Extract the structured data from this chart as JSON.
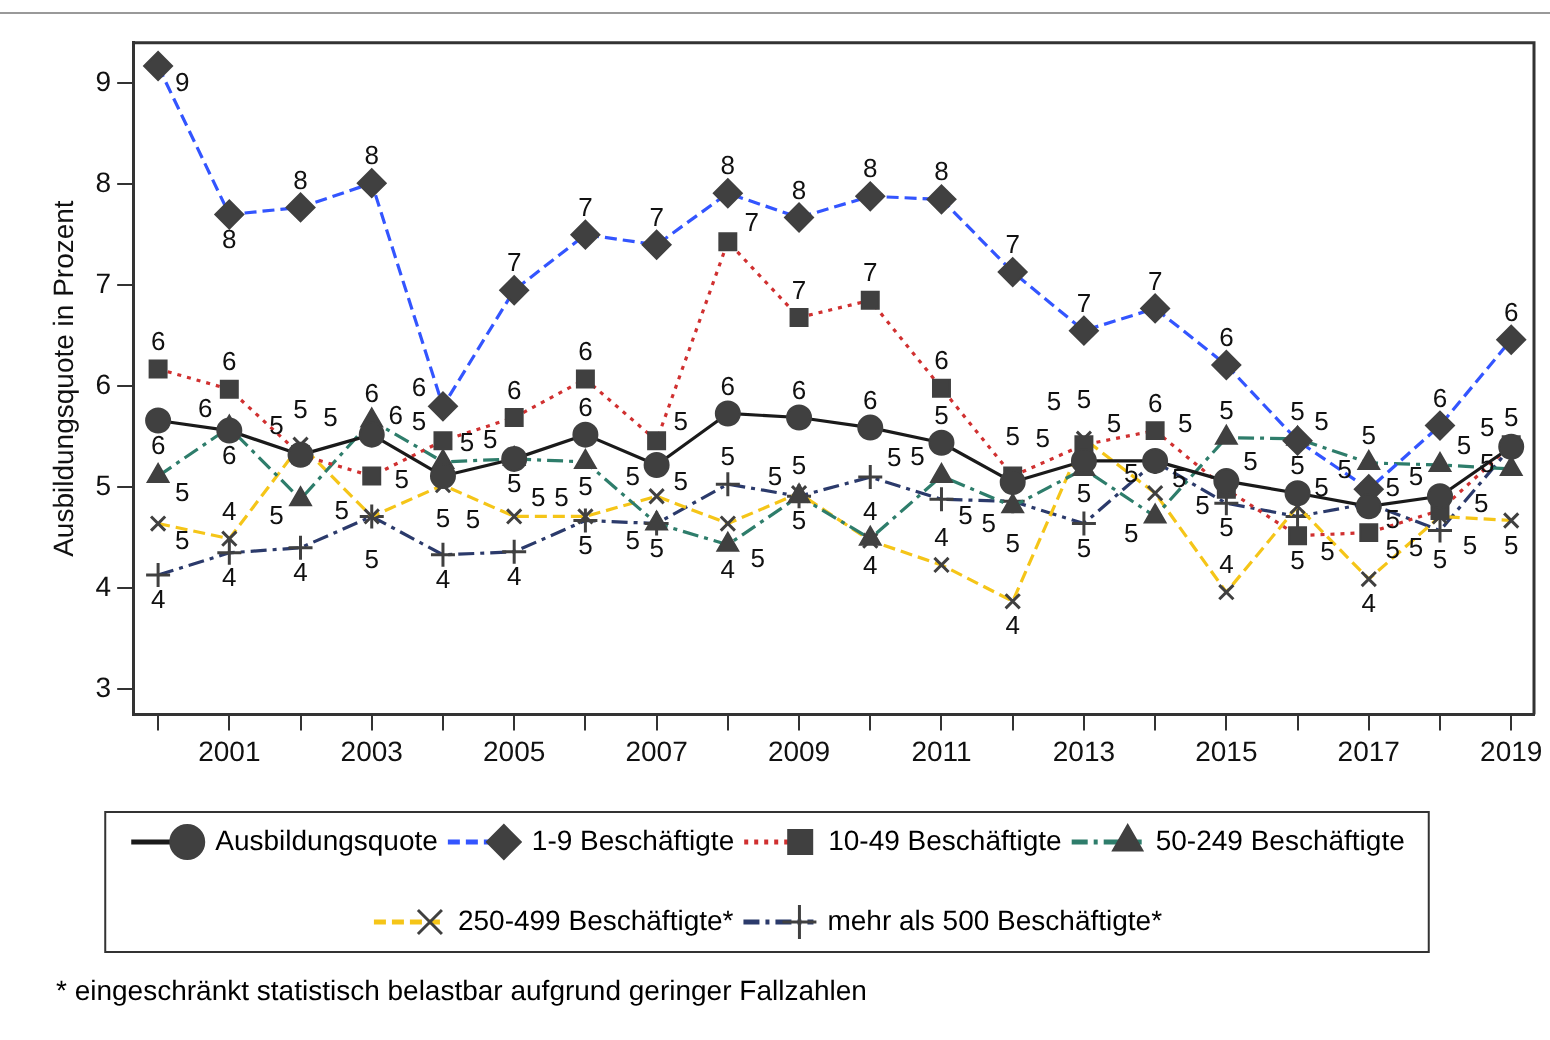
{
  "chart_data": {
    "type": "line",
    "ylabel": "Ausbildungsquote in Prozent",
    "x": [
      2000,
      2001,
      2002,
      2003,
      2004,
      2005,
      2006,
      2007,
      2008,
      2009,
      2010,
      2011,
      2012,
      2013,
      2014,
      2015,
      2016,
      2017,
      2018,
      2019
    ],
    "xlim": [
      1999.65,
      2019.32
    ],
    "xticks": [
      {
        "value": 2000,
        "label": null
      },
      2001,
      {
        "value": 2002,
        "label": null
      },
      2003,
      {
        "value": 2004,
        "label": null
      },
      2005,
      {
        "value": 2006,
        "label": null
      },
      2007,
      {
        "value": 2008,
        "label": null
      },
      2009,
      {
        "value": 2010,
        "label": null
      },
      2011,
      {
        "value": 2012,
        "label": null
      },
      2013,
      {
        "value": 2014,
        "label": null
      },
      2015,
      {
        "value": 2016,
        "label": null
      },
      2017,
      {
        "value": 2018,
        "label": null
      },
      2019
    ],
    "ylim": [
      2.75,
      9.4
    ],
    "yticks": [
      3,
      4,
      5,
      6,
      7,
      8,
      9
    ],
    "grid": false,
    "legend": "bottom",
    "series": [
      {
        "name": "Ausbildungsquote",
        "color": "#1a1a1a",
        "marker": "circle",
        "line_style": "solid",
        "values": [
          5.66,
          5.56,
          5.32,
          5.52,
          5.11,
          5.28,
          5.52,
          5.22,
          5.73,
          5.69,
          5.59,
          5.44,
          5.05,
          5.26,
          5.26,
          5.06,
          4.94,
          4.81,
          4.91,
          5.4
        ],
        "value_labels": [
          "6",
          "6",
          "5",
          "6",
          "5",
          "5",
          "6",
          "5",
          "6",
          "6",
          "6",
          "5",
          "5",
          "5",
          "5",
          "5",
          "5",
          "5",
          "5",
          "5"
        ]
      },
      {
        "name": "1-9 Beschäftigte",
        "color": "#3355ff",
        "marker": "diamond",
        "line_style": "dashed",
        "values": [
          9.17,
          7.7,
          7.77,
          8.01,
          5.8,
          6.95,
          7.5,
          7.4,
          7.91,
          7.67,
          7.88,
          7.85,
          7.13,
          6.55,
          6.77,
          6.21,
          5.46,
          4.98,
          5.61,
          6.46
        ],
        "value_labels": [
          "9",
          "8",
          "8",
          "8",
          "6",
          "7",
          "7",
          "7",
          "8",
          "8",
          "8",
          "8",
          "7",
          "7",
          "7",
          "6",
          "5",
          "5",
          "6",
          "6"
        ]
      },
      {
        "name": "10-49 Beschäftigte",
        "color": "#d03030",
        "marker": "square",
        "line_style": "dotted",
        "values": [
          6.17,
          5.97,
          5.32,
          5.11,
          5.46,
          5.69,
          6.07,
          5.46,
          7.43,
          6.68,
          6.85,
          5.98,
          5.11,
          5.42,
          5.56,
          4.98,
          4.52,
          4.55,
          4.77,
          5.42
        ],
        "value_labels": [
          "6",
          "6",
          "5",
          "5",
          "5",
          "6",
          "6",
          "5",
          "7",
          "7",
          "7",
          "6",
          "5",
          "5",
          "6",
          "5",
          "5",
          "5",
          "5",
          "5"
        ]
      },
      {
        "name": "50-249 Beschäftigte",
        "color": "#2e7d6b",
        "marker": "triangle",
        "line_style": "dashdot",
        "values": [
          5.11,
          5.59,
          4.88,
          5.66,
          5.25,
          5.28,
          5.25,
          4.64,
          4.43,
          4.91,
          4.49,
          5.11,
          4.81,
          5.18,
          4.71,
          5.49,
          5.48,
          5.24,
          5.22,
          5.18
        ],
        "value_labels": [
          "5",
          "6",
          "5",
          "6",
          "5",
          "5",
          "5",
          "5",
          "4",
          "5",
          "4",
          "5",
          "5",
          "5",
          "5",
          "5",
          "5",
          "5",
          "5",
          "5"
        ]
      },
      {
        "name": "250-499 Beschäftigte*",
        "color": "#f5c518",
        "marker": "x",
        "line_style": "dashed",
        "values": [
          4.64,
          4.49,
          5.42,
          4.71,
          5.02,
          4.71,
          4.71,
          4.91,
          4.64,
          4.94,
          4.47,
          4.23,
          3.87,
          5.48,
          4.94,
          3.96,
          4.81,
          4.09,
          4.71,
          4.67
        ],
        "value_labels": [
          "5",
          "4",
          "5",
          "5",
          "5",
          "5",
          "5",
          "5",
          "5",
          "5",
          "4",
          "4",
          "4",
          "5",
          "5",
          "4",
          "5",
          "4",
          "5",
          "5"
        ]
      },
      {
        "name": "mehr als 500 Beschäftigte*",
        "color": "#2b3a6b",
        "marker": "cross",
        "line_style": "dashdot",
        "values": [
          4.13,
          4.35,
          4.4,
          4.71,
          4.33,
          4.36,
          4.67,
          4.64,
          5.03,
          4.91,
          5.1,
          4.88,
          4.86,
          4.64,
          5.25,
          4.84,
          4.71,
          4.84,
          4.57,
          5.4
        ],
        "value_labels": [
          "4",
          "4",
          "4",
          "5",
          "4",
          "4",
          "5",
          "5",
          "5",
          "5",
          "5",
          "5",
          "5",
          "5",
          "5",
          "5",
          "5",
          "5",
          "5",
          "5"
        ]
      }
    ],
    "annotations": [
      "* eingeschränkt statistisch belastbar aufgrund geringer Fallzahlen"
    ]
  }
}
